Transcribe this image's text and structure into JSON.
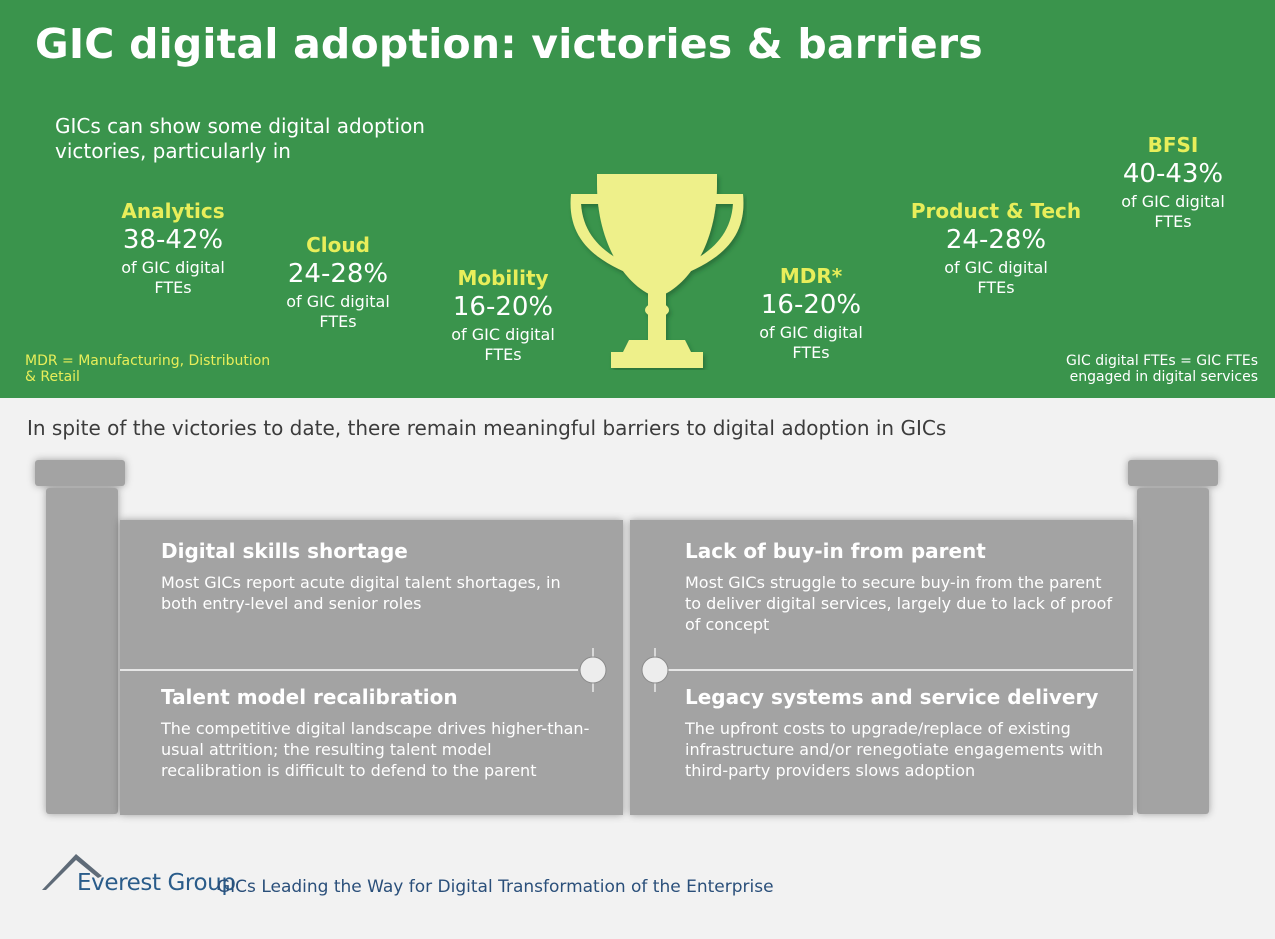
{
  "header": {
    "title": "GIC digital adoption: victories & barriers",
    "intro": "GICs can show some digital adoption victories, particularly in"
  },
  "stats": [
    {
      "name": "Analytics",
      "range": "38-42%",
      "unit": "of GIC digital FTEs"
    },
    {
      "name": "Cloud",
      "range": "24-28%",
      "unit": "of GIC digital FTEs"
    },
    {
      "name": "Mobility",
      "range": "16-20%",
      "unit": "of GIC digital FTEs"
    },
    {
      "name": "MDR*",
      "range": "16-20%",
      "unit": "of GIC digital FTEs"
    },
    {
      "name": "Product & Tech",
      "range": "24-28%",
      "unit": "of GIC digital FTEs"
    },
    {
      "name": "BFSI",
      "range": "40-43%",
      "unit": "of GIC digital FTEs"
    }
  ],
  "notes": {
    "mdr": "MDR = Manufacturing, Distribution & Retail",
    "fte": "GIC digital FTEs = GIC FTEs engaged in digital services"
  },
  "trophy_icon": "trophy-icon",
  "barriers": {
    "intro": "In spite of the victories to date, there remain meaningful barriers to digital adoption in GICs",
    "items": [
      {
        "heading": "Digital skills shortage",
        "body": "Most GICs report acute digital talent shortages, in both entry-level and senior roles"
      },
      {
        "heading": "Lack of buy-in from parent",
        "body": "Most GICs struggle to secure buy-in from the parent to deliver digital services, largely due to lack of proof of concept"
      },
      {
        "heading": "Talent model recalibration",
        "body": "The competitive digital landscape drives higher-than-usual attrition; the resulting talent model recalibration is difficult to defend to the parent"
      },
      {
        "heading": "Legacy systems and service delivery",
        "body": "The upfront costs to upgrade/replace of existing infrastructure and/or renegotiate engagements with third-party providers slows adoption"
      }
    ]
  },
  "footer": {
    "brand": "Everest Group",
    "tagline": "GICs Leading the Way for Digital Transformation of the Enterprise"
  },
  "colors": {
    "green_band": "#3a944c",
    "accent_yellow": "#e8ee5a",
    "trophy": "#eef08a",
    "gate_gray": "#a3a3a3",
    "brand_blue": "#2a5c8a"
  }
}
